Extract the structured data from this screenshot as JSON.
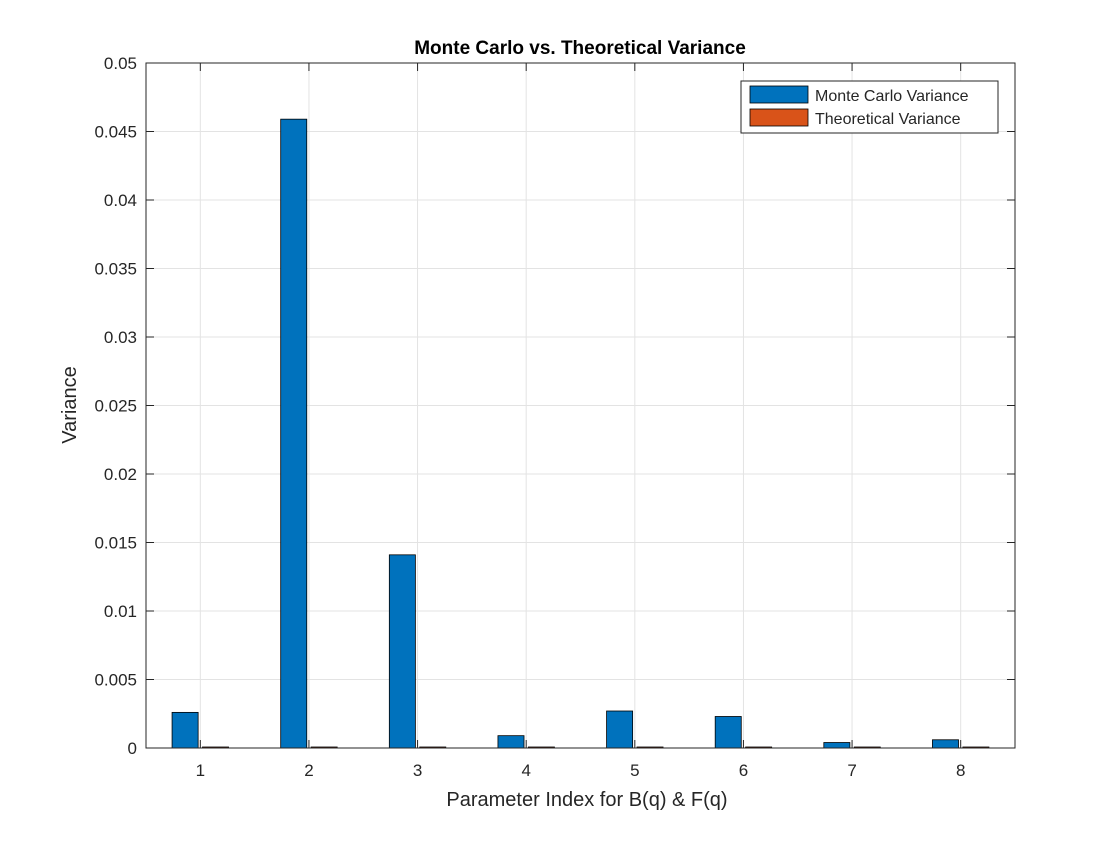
{
  "chart_data": {
    "type": "bar",
    "title": "Monte Carlo vs. Theoretical Variance",
    "xlabel": "Parameter Index for B(q) & F(q)",
    "ylabel": "Variance",
    "categories": [
      "1",
      "2",
      "3",
      "4",
      "5",
      "6",
      "7",
      "8"
    ],
    "series": [
      {
        "name": "Monte Carlo Variance",
        "color": "#0072BD",
        "values": [
          0.0026,
          0.0459,
          0.0141,
          0.0009,
          0.0027,
          0.0023,
          0.0004,
          0.0006
        ]
      },
      {
        "name": "Theoretical Variance",
        "color": "#D95319",
        "values": [
          5e-05,
          5e-05,
          5e-05,
          5e-05,
          5e-05,
          5e-05,
          5e-05,
          5e-05
        ]
      }
    ],
    "ylim": [
      0,
      0.05
    ],
    "yticks": [
      0,
      0.005,
      0.01,
      0.015,
      0.02,
      0.025,
      0.03,
      0.035,
      0.04,
      0.045,
      0.05
    ],
    "ytick_labels": [
      "0",
      "0.005",
      "0.01",
      "0.015",
      "0.02",
      "0.025",
      "0.03",
      "0.035",
      "0.04",
      "0.045",
      "0.05"
    ],
    "grid": true,
    "legend_position": "top-right"
  }
}
